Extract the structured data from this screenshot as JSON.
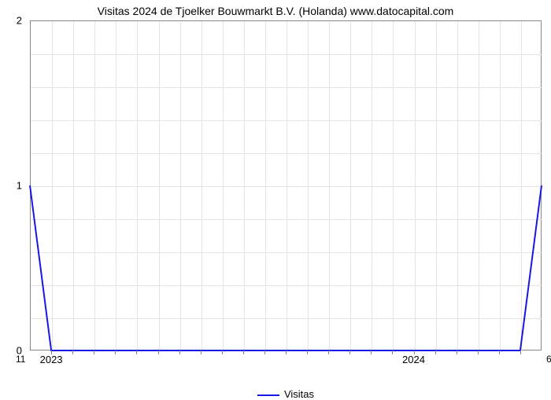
{
  "chart": {
    "type": "line",
    "title": "Visitas 2024 de Tjoelker Bouwmarkt B.V. (Holanda) www.datocapital.com",
    "title_fontsize": 14,
    "title_color": "#000000",
    "background_color": "#ffffff",
    "plot_border_color": "#888888",
    "grid_color": "#e4e4e4",
    "y": {
      "min": 0,
      "max": 2,
      "major_ticks": [
        0,
        1,
        2
      ],
      "minor_count_between": 4,
      "label_fontsize": 13
    },
    "x": {
      "n_cols": 24,
      "major_labels": [
        {
          "text": "2023",
          "col": 1
        },
        {
          "text": "2024",
          "col": 18
        }
      ],
      "label_fontsize": 13
    },
    "corner_labels": {
      "left_text": "11",
      "right_text": "6",
      "fontsize": 12
    },
    "series": {
      "name": "Visitas",
      "color": "#1818e6",
      "width": 2,
      "points": [
        {
          "col": 0,
          "y": 1
        },
        {
          "col": 1,
          "y": 0
        },
        {
          "col": 2,
          "y": 0
        },
        {
          "col": 3,
          "y": 0
        },
        {
          "col": 4,
          "y": 0
        },
        {
          "col": 5,
          "y": 0
        },
        {
          "col": 6,
          "y": 0
        },
        {
          "col": 7,
          "y": 0
        },
        {
          "col": 8,
          "y": 0
        },
        {
          "col": 9,
          "y": 0
        },
        {
          "col": 10,
          "y": 0
        },
        {
          "col": 11,
          "y": 0
        },
        {
          "col": 12,
          "y": 0
        },
        {
          "col": 13,
          "y": 0
        },
        {
          "col": 14,
          "y": 0
        },
        {
          "col": 15,
          "y": 0
        },
        {
          "col": 16,
          "y": 0
        },
        {
          "col": 17,
          "y": 0
        },
        {
          "col": 18,
          "y": 0
        },
        {
          "col": 19,
          "y": 0
        },
        {
          "col": 20,
          "y": 0
        },
        {
          "col": 21,
          "y": 0
        },
        {
          "col": 22,
          "y": 0
        },
        {
          "col": 23,
          "y": 0
        },
        {
          "col": 24,
          "y": 1
        }
      ]
    },
    "legend_label": "Visitas"
  }
}
